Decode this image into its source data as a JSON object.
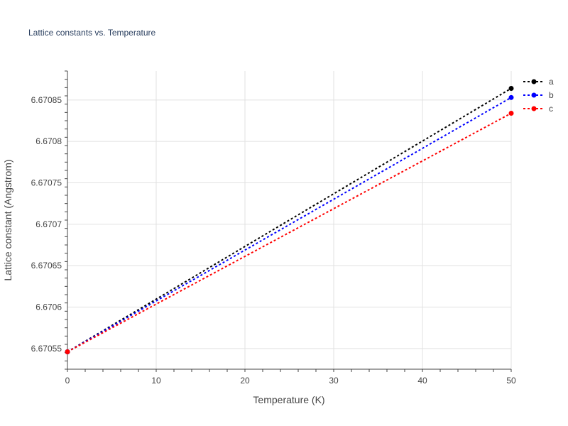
{
  "chart_data": {
    "type": "line",
    "title": "Lattice constants vs. Temperature",
    "xlabel": "Temperature (K)",
    "ylabel": "Lattice constant (Angstrom)",
    "xlim": [
      0,
      50
    ],
    "ylim": [
      6.670525,
      6.670885
    ],
    "x_ticks": [
      0,
      10,
      20,
      30,
      40,
      50
    ],
    "y_ticks": [
      6.67055,
      6.6706,
      6.67065,
      6.6707,
      6.67075,
      6.6708,
      6.67085
    ],
    "y_tick_labels": [
      "6.67055",
      "6.6706",
      "6.67065",
      "6.6707",
      "6.67075",
      "6.6708",
      "6.67085"
    ],
    "grid": true,
    "legend_position": "top-right",
    "series": [
      {
        "name": "a",
        "color": "#000000",
        "x": [
          0,
          50
        ],
        "y": [
          6.670546,
          6.670864
        ]
      },
      {
        "name": "b",
        "color": "#0000ff",
        "x": [
          0,
          50
        ],
        "y": [
          6.670546,
          6.670853
        ]
      },
      {
        "name": "c",
        "color": "#ff0000",
        "x": [
          0,
          50
        ],
        "y": [
          6.670546,
          6.670834
        ]
      }
    ]
  }
}
